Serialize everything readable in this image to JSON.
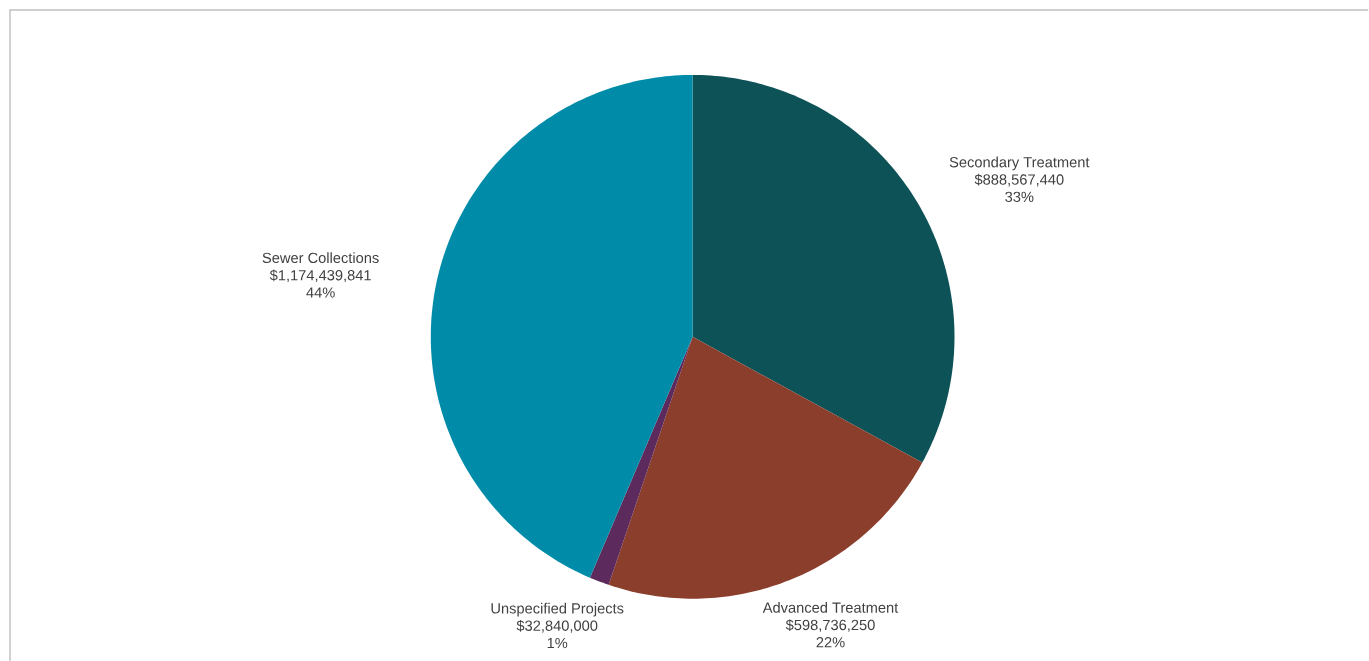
{
  "chart_data": {
    "type": "pie",
    "categories": [
      "Secondary Treatment",
      "Advanced Treatment",
      "Unspecified Projects",
      "Sewer Collections"
    ],
    "values": [
      888567440,
      598736250,
      32840000,
      1174439841
    ],
    "colors": [
      "#0d5257",
      "#8b3e2c",
      "#5c2a5c",
      "#008ca8"
    ],
    "value_labels": [
      "$888,567,440",
      "$598,736,250",
      "$32,840,000",
      "$1,174,439,841"
    ],
    "annotations": [
      "33%",
      "22%",
      "1%",
      "44%"
    ]
  }
}
